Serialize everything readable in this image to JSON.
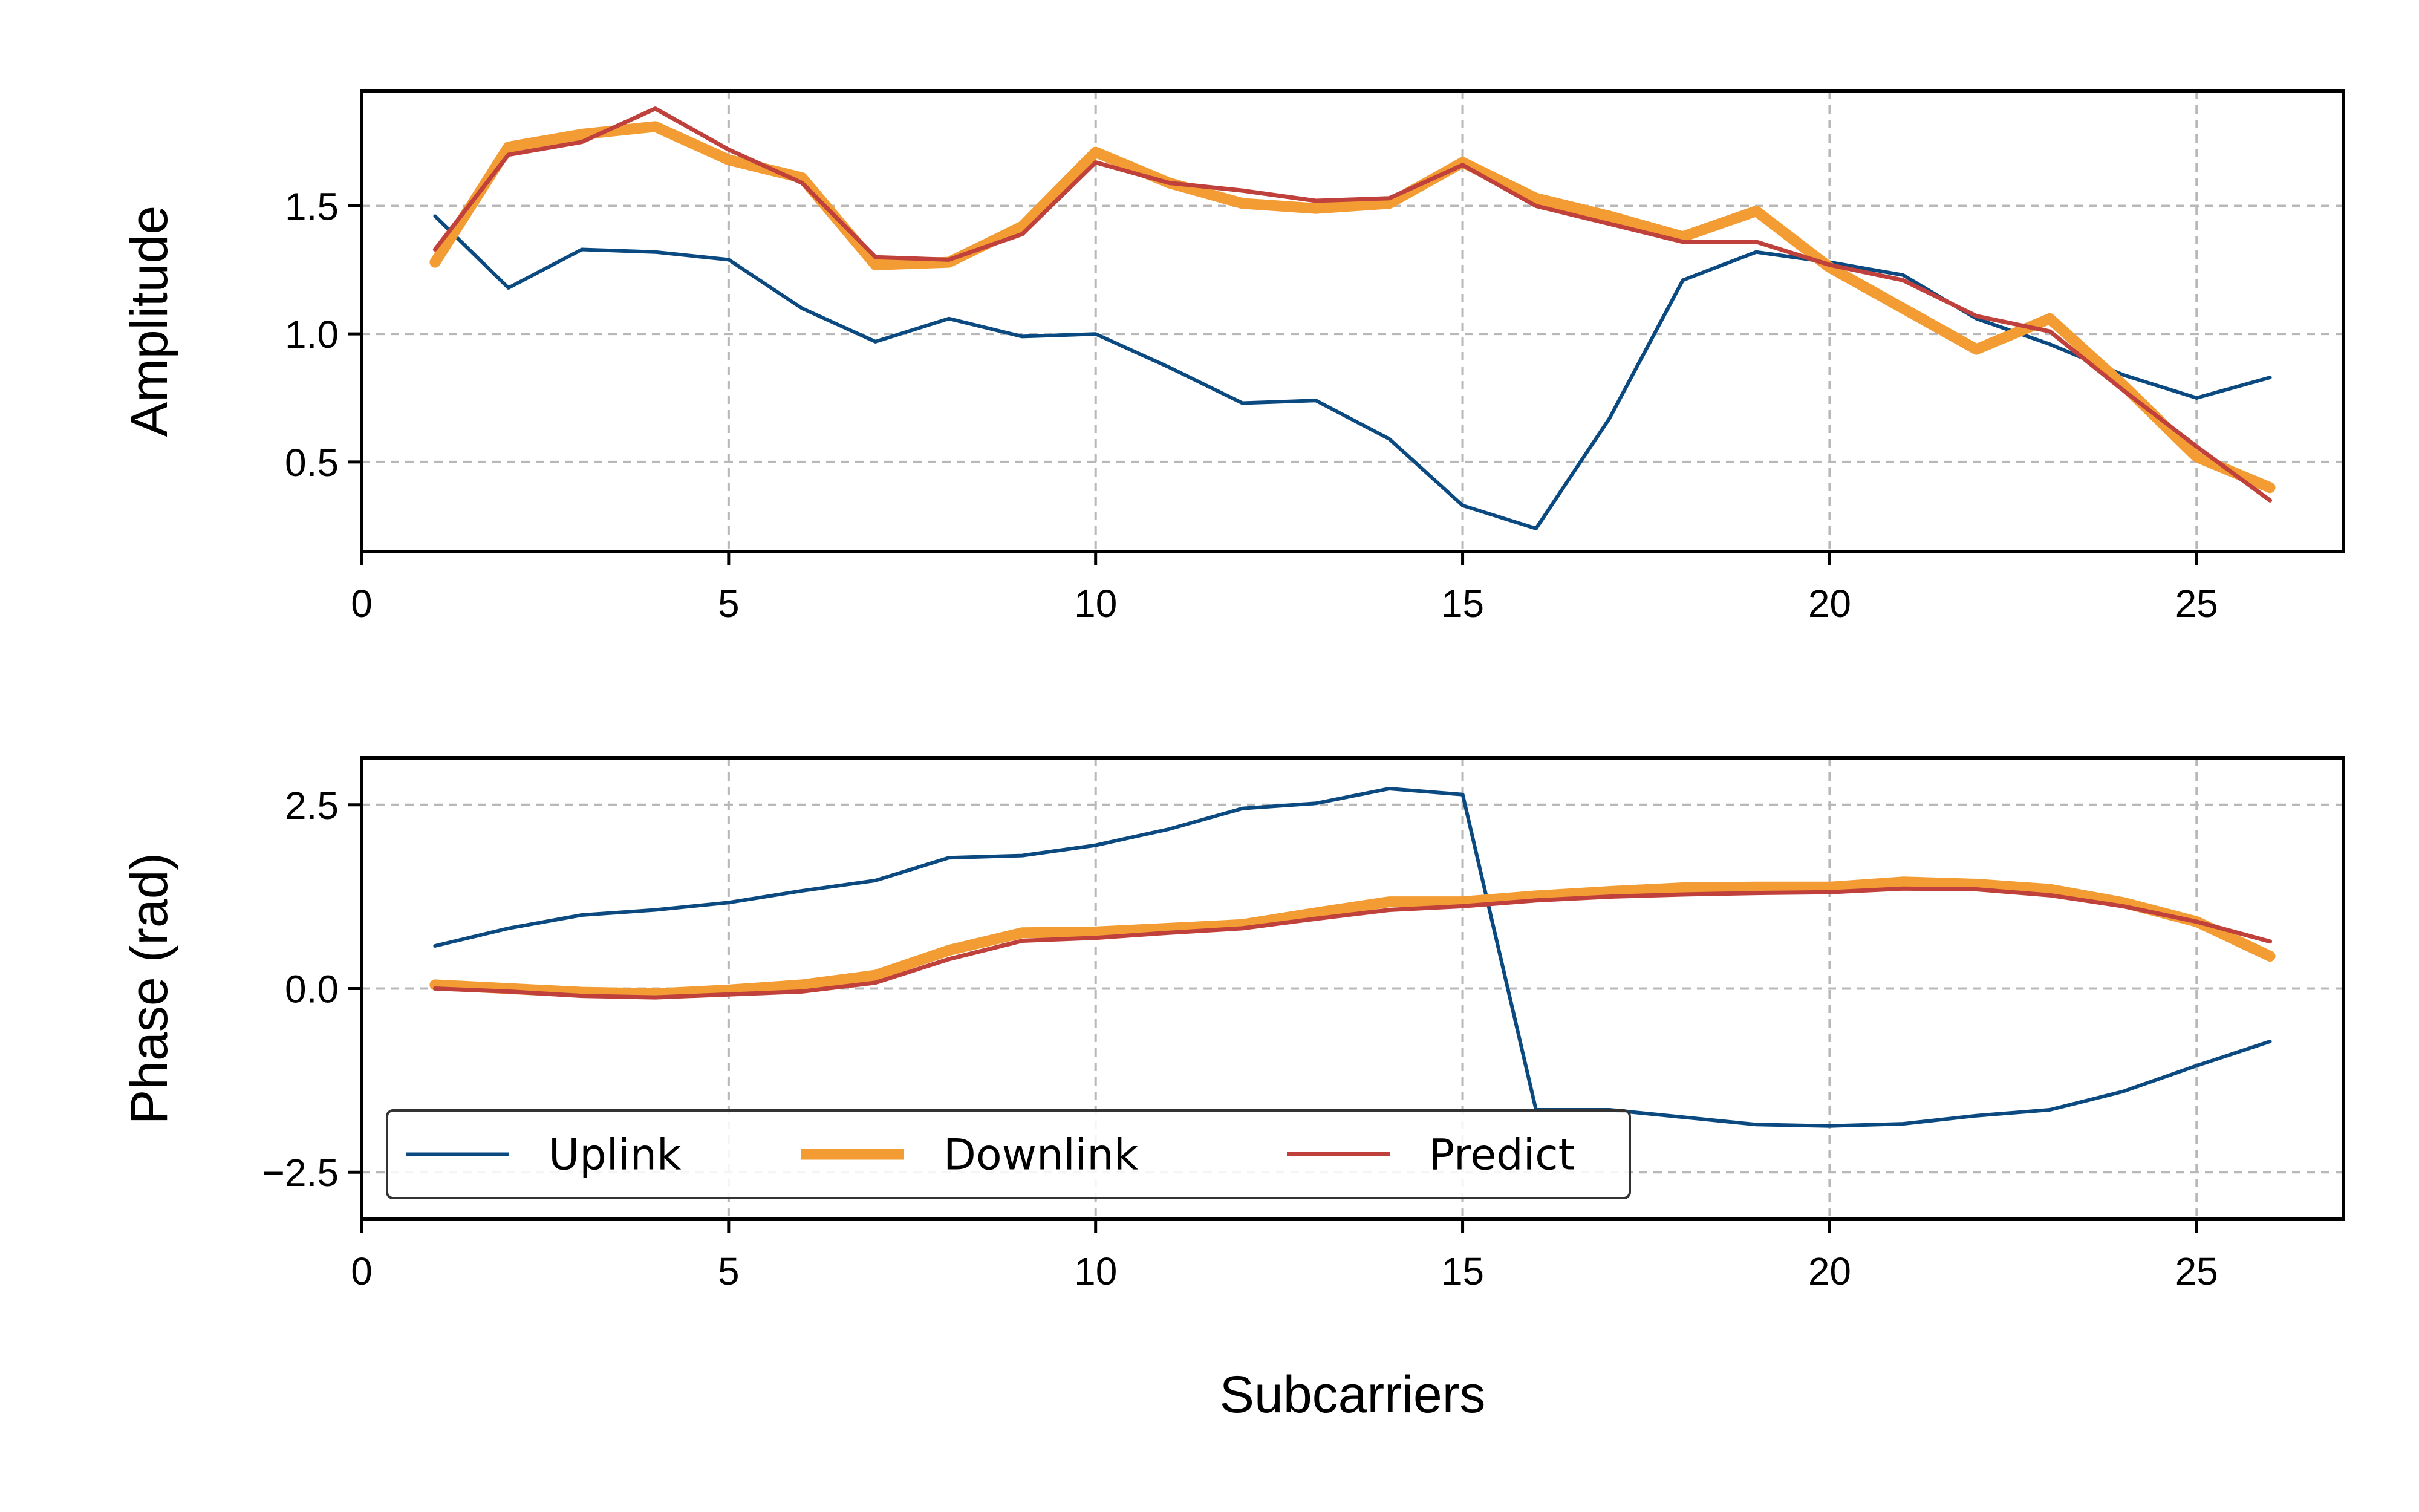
{
  "chart_data": [
    {
      "type": "line",
      "ylabel": "Amplitude",
      "xlabel": "",
      "xlim": [
        0,
        27
      ],
      "ylim": [
        0.15,
        1.95
      ],
      "xticks": [
        0,
        5,
        10,
        15,
        20,
        25
      ],
      "yticks": [
        0.5,
        1.0,
        1.5
      ],
      "ytick_labels": [
        "0.5",
        "1.0",
        "1.5"
      ],
      "grid": true,
      "x": [
        1,
        2,
        3,
        4,
        5,
        6,
        7,
        8,
        9,
        10,
        11,
        12,
        13,
        14,
        15,
        16,
        17,
        18,
        19,
        20,
        21,
        22,
        23,
        24,
        25,
        26
      ],
      "series": [
        {
          "name": "Uplink",
          "color": "#0b4a80",
          "values": [
            1.46,
            1.18,
            1.33,
            1.32,
            1.29,
            1.1,
            0.97,
            1.06,
            0.99,
            1.0,
            0.87,
            0.73,
            0.74,
            0.59,
            0.33,
            0.24,
            0.67,
            1.21,
            1.32,
            1.28,
            1.23,
            1.06,
            0.96,
            0.84,
            0.75,
            0.83
          ]
        },
        {
          "name": "Downlink",
          "color": "#f29c33",
          "values": [
            1.28,
            1.73,
            1.78,
            1.81,
            1.68,
            1.61,
            1.27,
            1.28,
            1.42,
            1.71,
            1.59,
            1.51,
            1.49,
            1.51,
            1.67,
            1.53,
            1.46,
            1.38,
            1.48,
            1.26,
            1.1,
            0.94,
            1.06,
            0.8,
            0.52,
            0.4
          ]
        },
        {
          "name": "Predict",
          "color": "#c0413b",
          "values": [
            1.33,
            1.7,
            1.75,
            1.88,
            1.72,
            1.59,
            1.3,
            1.29,
            1.39,
            1.67,
            1.59,
            1.56,
            1.52,
            1.53,
            1.66,
            1.5,
            1.43,
            1.36,
            1.36,
            1.27,
            1.21,
            1.07,
            1.01,
            0.78,
            0.56,
            0.35
          ]
        }
      ]
    },
    {
      "type": "line",
      "ylabel": "Phase (rad)",
      "xlabel": "Subcarriers",
      "xlim": [
        0,
        27
      ],
      "ylim": [
        -3.14,
        3.14
      ],
      "xticks": [
        0,
        5,
        10,
        15,
        20,
        25
      ],
      "yticks": [
        -2.5,
        0.0,
        2.5
      ],
      "ytick_labels": [
        "−2.5",
        "0.0",
        "2.5"
      ],
      "grid": true,
      "legend": {
        "placement": "lower-left",
        "columns": 3
      },
      "x": [
        1,
        2,
        3,
        4,
        5,
        6,
        7,
        8,
        9,
        10,
        11,
        12,
        13,
        14,
        15,
        16,
        17,
        18,
        19,
        20,
        21,
        22,
        23,
        24,
        25,
        26
      ],
      "series": [
        {
          "name": "Uplink",
          "color": "#0b4a80",
          "values": [
            0.58,
            0.82,
            1.0,
            1.07,
            1.17,
            1.33,
            1.47,
            1.78,
            1.81,
            1.95,
            2.17,
            2.45,
            2.52,
            2.72,
            2.64,
            -1.65,
            -1.65,
            -1.75,
            -1.85,
            -1.87,
            -1.84,
            -1.73,
            -1.65,
            -1.4,
            -1.05,
            -0.72
          ]
        },
        {
          "name": "Downlink",
          "color": "#f29c33",
          "values": [
            0.05,
            0.0,
            -0.05,
            -0.07,
            -0.02,
            0.05,
            0.18,
            0.52,
            0.76,
            0.77,
            0.82,
            0.87,
            1.03,
            1.18,
            1.18,
            1.26,
            1.32,
            1.37,
            1.38,
            1.38,
            1.45,
            1.42,
            1.35,
            1.17,
            0.91,
            0.44
          ]
        },
        {
          "name": "Predict",
          "color": "#c0413b",
          "values": [
            0.0,
            -0.04,
            -0.1,
            -0.12,
            -0.08,
            -0.04,
            0.08,
            0.4,
            0.65,
            0.69,
            0.76,
            0.82,
            0.95,
            1.07,
            1.12,
            1.2,
            1.25,
            1.28,
            1.3,
            1.31,
            1.36,
            1.35,
            1.27,
            1.12,
            0.91,
            0.64
          ]
        }
      ]
    }
  ]
}
